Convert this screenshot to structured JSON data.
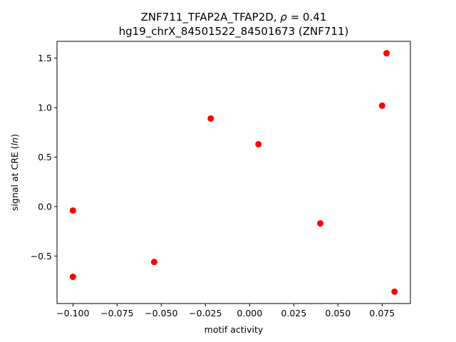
{
  "chart_data": {
    "type": "scatter",
    "title_line1_prefix": "ZNF711_TFAP2A_TFAP2D, ",
    "title_line1_rho": "ρ",
    "title_line1_suffix": " = 0.41",
    "title_line2": "hg19_chrX_84501522_84501673 (ZNF711)",
    "xlabel": "motif activity",
    "ylabel_prefix": "signal at CRE (",
    "ylabel_italic": "ln",
    "ylabel_suffix": ")",
    "xlim": [
      -0.109,
      0.091
    ],
    "ylim": [
      -0.98,
      1.67
    ],
    "xticks": [
      {
        "value": -0.1,
        "label": "−0.100"
      },
      {
        "value": -0.075,
        "label": "−0.075"
      },
      {
        "value": -0.05,
        "label": "−0.050"
      },
      {
        "value": -0.025,
        "label": "−0.025"
      },
      {
        "value": 0.0,
        "label": "0.000"
      },
      {
        "value": 0.025,
        "label": "0.025"
      },
      {
        "value": 0.05,
        "label": "0.050"
      },
      {
        "value": 0.075,
        "label": "0.075"
      }
    ],
    "yticks": [
      {
        "value": -0.5,
        "label": "−0.5"
      },
      {
        "value": 0.0,
        "label": "0.0"
      },
      {
        "value": 0.5,
        "label": "0.5"
      },
      {
        "value": 1.0,
        "label": "1.0"
      },
      {
        "value": 1.5,
        "label": "1.5"
      }
    ],
    "grid": false,
    "marker_color": "#ff0000",
    "points": [
      {
        "x": -0.1,
        "y": -0.04
      },
      {
        "x": -0.1,
        "y": -0.71
      },
      {
        "x": -0.054,
        "y": -0.56
      },
      {
        "x": -0.022,
        "y": 0.89
      },
      {
        "x": 0.005,
        "y": 0.63
      },
      {
        "x": 0.04,
        "y": -0.17
      },
      {
        "x": 0.075,
        "y": 1.02
      },
      {
        "x": 0.0775,
        "y": 1.55
      },
      {
        "x": 0.082,
        "y": -0.86
      }
    ]
  }
}
